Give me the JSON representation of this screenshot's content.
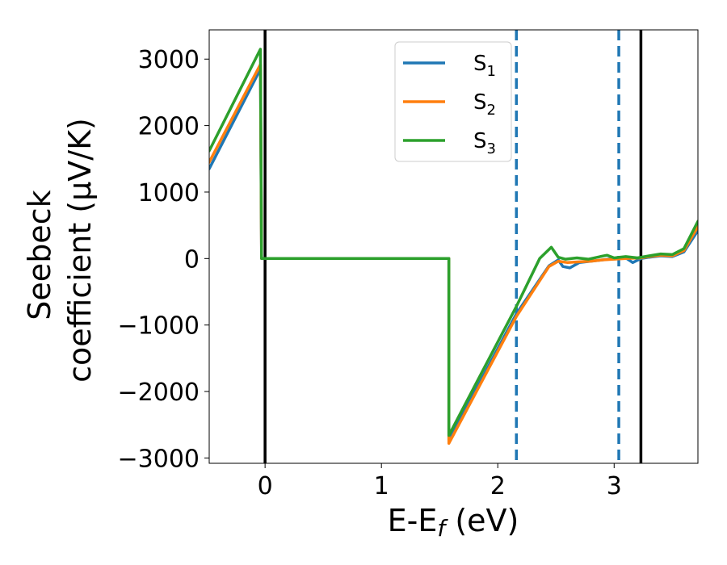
{
  "chart_data": {
    "type": "line",
    "xlabel": "E-E_f (eV)",
    "ylabel_line1": "Seebeck",
    "ylabel_line2": "coefficient  (μV/K)",
    "xlim": [
      -0.48,
      3.72
    ],
    "ylim": [
      -3080,
      3440
    ],
    "x_ticks": [
      0,
      1,
      2,
      3
    ],
    "x_tick_labels": [
      "0",
      "1",
      "2",
      "3"
    ],
    "y_ticks": [
      3000,
      2000,
      1000,
      0,
      -1000,
      -2000,
      -3000
    ],
    "y_tick_labels": [
      "3000",
      "2000",
      "1000",
      "0",
      "−1000",
      "−2000",
      "−3000"
    ],
    "grid": false,
    "legend": {
      "position": "top-center"
    },
    "vertical_lines": [
      {
        "x": 0.0,
        "color": "#000000",
        "style": "solid"
      },
      {
        "x": 2.16,
        "color": "#1f77b4",
        "style": "dashed"
      },
      {
        "x": 3.04,
        "color": "#1f77b4",
        "style": "dashed"
      },
      {
        "x": 3.23,
        "color": "#000000",
        "style": "solid"
      }
    ],
    "series": [
      {
        "name": "S",
        "subscript": "1",
        "color": "#1f77b4",
        "points": [
          [
            -0.48,
            1350
          ],
          [
            -0.04,
            2850
          ],
          [
            -0.03,
            0
          ],
          [
            1.58,
            0
          ],
          [
            1.58,
            -2730
          ],
          [
            2.16,
            -830
          ],
          [
            2.44,
            -110
          ],
          [
            2.52,
            -20
          ],
          [
            2.56,
            -120
          ],
          [
            2.62,
            -140
          ],
          [
            2.7,
            -60
          ],
          [
            2.8,
            -40
          ],
          [
            2.9,
            -20
          ],
          [
            3.0,
            0
          ],
          [
            3.1,
            10
          ],
          [
            3.16,
            -60
          ],
          [
            3.23,
            0
          ],
          [
            3.3,
            20
          ],
          [
            3.4,
            40
          ],
          [
            3.5,
            30
          ],
          [
            3.6,
            100
          ],
          [
            3.72,
            420
          ]
        ]
      },
      {
        "name": "S",
        "subscript": "2",
        "color": "#ff7f0e",
        "points": [
          [
            -0.48,
            1450
          ],
          [
            -0.04,
            2920
          ],
          [
            -0.03,
            0
          ],
          [
            1.58,
            0
          ],
          [
            1.58,
            -2780
          ],
          [
            2.16,
            -870
          ],
          [
            2.44,
            -120
          ],
          [
            2.52,
            -40
          ],
          [
            2.6,
            -60
          ],
          [
            2.7,
            -50
          ],
          [
            2.8,
            -40
          ],
          [
            2.9,
            -20
          ],
          [
            3.0,
            -10
          ],
          [
            3.1,
            0
          ],
          [
            3.23,
            10
          ],
          [
            3.3,
            30
          ],
          [
            3.4,
            50
          ],
          [
            3.5,
            40
          ],
          [
            3.6,
            120
          ],
          [
            3.72,
            480
          ]
        ]
      },
      {
        "name": "S",
        "subscript": "3",
        "color": "#2ca02c",
        "points": [
          [
            -0.48,
            1620
          ],
          [
            -0.04,
            3150
          ],
          [
            -0.03,
            0
          ],
          [
            1.58,
            0
          ],
          [
            1.58,
            -2660
          ],
          [
            2.16,
            -720
          ],
          [
            2.36,
            0
          ],
          [
            2.46,
            170
          ],
          [
            2.52,
            20
          ],
          [
            2.58,
            -10
          ],
          [
            2.68,
            10
          ],
          [
            2.78,
            -10
          ],
          [
            2.88,
            30
          ],
          [
            2.94,
            50
          ],
          [
            3.0,
            10
          ],
          [
            3.1,
            30
          ],
          [
            3.2,
            10
          ],
          [
            3.3,
            40
          ],
          [
            3.4,
            70
          ],
          [
            3.5,
            60
          ],
          [
            3.6,
            150
          ],
          [
            3.72,
            560
          ]
        ]
      }
    ]
  }
}
